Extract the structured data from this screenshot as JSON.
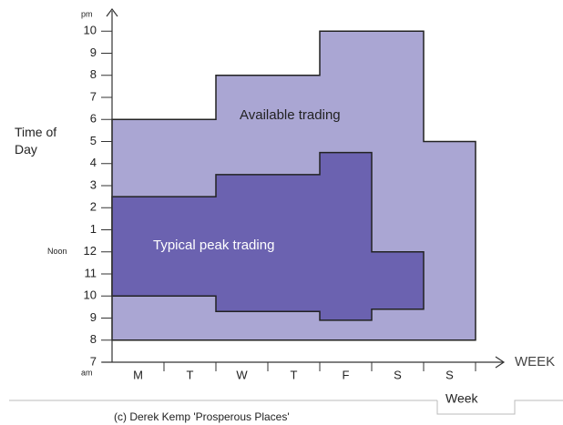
{
  "chart_data": {
    "type": "range-step",
    "ylabel": "Time of Day",
    "xlabel": "WEEK",
    "tab_label": "Week",
    "caption": "(c) Derek Kemp 'Prosperous Places'",
    "noon_label": "Noon",
    "am_label": "am",
    "pm_label": "pm",
    "categories": [
      "M",
      "T",
      "W",
      "T",
      "F",
      "S",
      "S"
    ],
    "series": [
      {
        "name": "Available trading",
        "color": "#aaa6d3",
        "high": [
          18,
          18,
          20,
          20,
          22,
          22,
          17
        ],
        "low": [
          8,
          8,
          8,
          8,
          8,
          8,
          8
        ]
      },
      {
        "name": "Typical peak trading",
        "color": "#6b62b0",
        "high": [
          14.5,
          14.5,
          15.5,
          15.5,
          16.5,
          12,
          null
        ],
        "low": [
          10,
          10,
          9.3,
          9.3,
          8.9,
          9.4,
          null
        ]
      }
    ],
    "ylim": [
      7,
      23
    ],
    "yticks": [
      7,
      8,
      9,
      10,
      11,
      12,
      {
        "value": 13,
        "label": "1"
      },
      {
        "value": 14,
        "label": "2"
      },
      {
        "value": 15,
        "label": "3"
      },
      {
        "value": 16,
        "label": "4"
      },
      {
        "value": 17,
        "label": "5"
      },
      {
        "value": 18,
        "label": "6"
      },
      {
        "value": 19,
        "label": "7"
      },
      {
        "value": 20,
        "label": "8"
      },
      {
        "value": 21,
        "label": "9"
      },
      {
        "value": 22,
        "label": "10"
      }
    ]
  }
}
